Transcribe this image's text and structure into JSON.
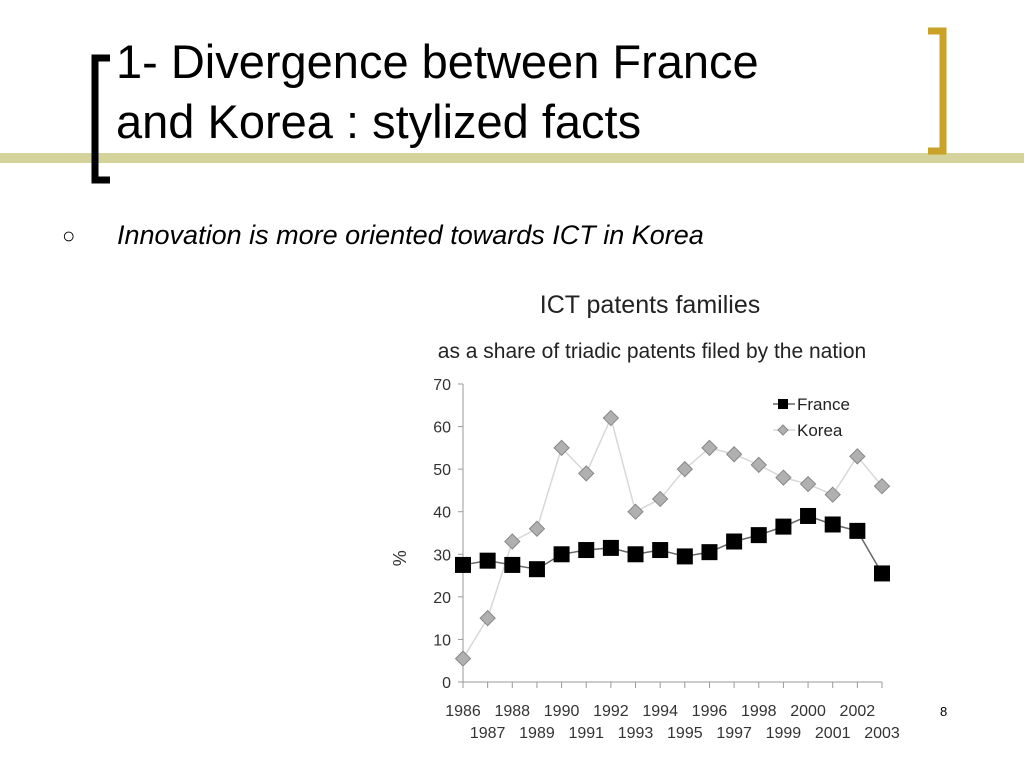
{
  "slide": {
    "title_lines": [
      "1- Divergence between France",
      "and Korea : stylized facts"
    ],
    "bullet": "Innovation is more oriented towards ICT in Korea",
    "page_number": "8"
  },
  "colors": {
    "accent_olive": "#d4d39b",
    "bracket_gold": "#c9a227",
    "bracket_black": "#000000",
    "france_series": "#000000",
    "korea_series": "#b0b0b0",
    "korea_line": "#d8d8d8"
  },
  "icons": {
    "bullet": "hollow-circle-bullet"
  },
  "chart_data": {
    "type": "line",
    "title": "ICT patents families",
    "subtitle": "as a share of triadic patents filed by the nation",
    "xlabel": "",
    "ylabel": "%",
    "ylim": [
      0,
      70
    ],
    "yticks": [
      0,
      10,
      20,
      30,
      40,
      50,
      60,
      70
    ],
    "x": [
      "1986",
      "1987",
      "1988",
      "1989",
      "1990",
      "1991",
      "1992",
      "1993",
      "1994",
      "1995",
      "1996",
      "1997",
      "1998",
      "1999",
      "2000",
      "2001",
      "2002",
      "2003"
    ],
    "series": [
      {
        "name": "France",
        "marker": "square",
        "values": [
          27.5,
          28.5,
          27.5,
          26.5,
          30,
          31,
          31.5,
          30,
          31,
          29.5,
          30.5,
          33,
          34.5,
          36.5,
          39,
          37,
          35.5,
          25.5
        ]
      },
      {
        "name": "Korea",
        "marker": "diamond",
        "values": [
          5.5,
          15,
          33,
          36,
          55,
          49,
          62,
          40,
          43,
          50,
          55,
          53.5,
          51,
          48,
          46.5,
          44,
          53,
          46
        ]
      }
    ],
    "legend_position": "top-right",
    "grid": false
  }
}
